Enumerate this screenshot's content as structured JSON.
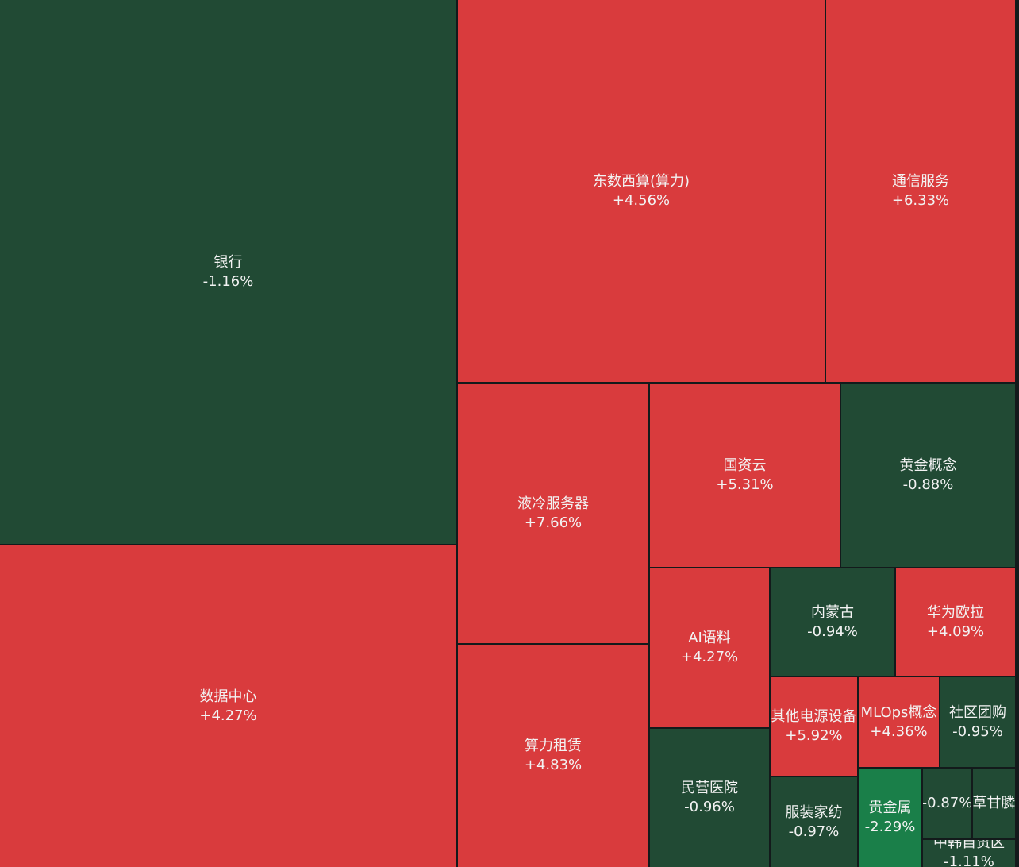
{
  "colors": {
    "up": "#d93b3d",
    "down": "#214a34",
    "down_strong": "#1a7f49",
    "background": "#131a1b",
    "text": "#f2f2f2"
  },
  "chart_data": {
    "type": "treemap",
    "title": "",
    "color_scale": "red = gain, green = loss",
    "items": [
      {
        "name": "银行",
        "change": "-1.16%",
        "value": -1.16
      },
      {
        "name": "数据中心",
        "change": "+4.27%",
        "value": 4.27
      },
      {
        "name": "东数西算(算力)",
        "change": "+4.56%",
        "value": 4.56
      },
      {
        "name": "通信服务",
        "change": "+6.33%",
        "value": 6.33
      },
      {
        "name": "液冷服务器",
        "change": "+7.66%",
        "value": 7.66
      },
      {
        "name": "算力租赁",
        "change": "+4.83%",
        "value": 4.83
      },
      {
        "name": "国资云",
        "change": "+5.31%",
        "value": 5.31
      },
      {
        "name": "黄金概念",
        "change": "-0.88%",
        "value": -0.88
      },
      {
        "name": "AI语料",
        "change": "+4.27%",
        "value": 4.27
      },
      {
        "name": "内蒙古",
        "change": "-0.94%",
        "value": -0.94
      },
      {
        "name": "华为欧拉",
        "change": "+4.09%",
        "value": 4.09
      },
      {
        "name": "民营医院",
        "change": "-0.96%",
        "value": -0.96
      },
      {
        "name": "其他电源设备",
        "change": "+5.92%",
        "value": 5.92
      },
      {
        "name": "MLOps概念",
        "change": "+4.36%",
        "value": 4.36
      },
      {
        "name": "社区团购",
        "change": "-0.95%",
        "value": -0.95
      },
      {
        "name": "服装家纺",
        "change": "-0.97%",
        "value": -0.97
      },
      {
        "name": "贵金属",
        "change": "-2.29%",
        "value": -2.29
      },
      {
        "name": "",
        "change": "-0.87%",
        "value": -0.87
      },
      {
        "name": "草甘膦",
        "change": "",
        "value": null
      },
      {
        "name": "中韩自贸区",
        "change": "-1.11%",
        "value": -1.11
      }
    ]
  }
}
